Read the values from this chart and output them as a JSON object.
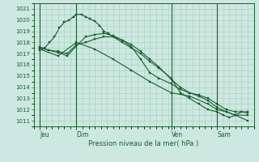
{
  "background_color": "#cce8e0",
  "grid_color": "#a8ccbf",
  "line_color": "#1a5e30",
  "xlabel": "Pression niveau de la mer( hPa )",
  "ylim": [
    1010.5,
    1021.5
  ],
  "yticks": [
    1011,
    1012,
    1013,
    1014,
    1015,
    1016,
    1017,
    1018,
    1019,
    1020,
    1021
  ],
  "xlim": [
    0,
    36
  ],
  "day_labels": [
    "Jeu",
    "Dim",
    "Ven",
    "Sam"
  ],
  "day_positions": [
    1.0,
    7.0,
    22.5,
    30.0
  ],
  "vline_positions": [
    1.0,
    7.0,
    22.5,
    30.0
  ],
  "series1_x": [
    1.0,
    1.8,
    2.6,
    3.4,
    4.2,
    5.0,
    5.8,
    6.5,
    7.0,
    7.8,
    8.5,
    9.2,
    10.0,
    10.8,
    11.5,
    12.2,
    13.0,
    14.5,
    16.0,
    17.5,
    19.0,
    20.5,
    22.5,
    24.0,
    25.5,
    27.0,
    28.5,
    30.0,
    31.0,
    32.0,
    33.0,
    34.0,
    35.0
  ],
  "series1_y": [
    1017.3,
    1017.5,
    1018.0,
    1018.5,
    1019.3,
    1019.8,
    1020.0,
    1020.3,
    1020.5,
    1020.5,
    1020.3,
    1020.1,
    1019.9,
    1019.5,
    1019.0,
    1018.8,
    1018.5,
    1018.0,
    1017.5,
    1017.0,
    1016.3,
    1015.7,
    1014.8,
    1013.5,
    1013.0,
    1012.5,
    1012.0,
    1011.8,
    1011.5,
    1011.3,
    1011.5,
    1011.8,
    1011.7
  ],
  "series2_x": [
    1.0,
    2.5,
    4.0,
    5.5,
    7.0,
    8.5,
    10.0,
    11.5,
    13.0,
    14.5,
    16.0,
    17.5,
    19.0,
    20.5,
    22.5,
    24.0,
    25.5,
    27.0,
    28.5,
    30.0,
    31.5,
    33.0,
    35.0
  ],
  "series2_y": [
    1017.5,
    1017.3,
    1017.2,
    1017.0,
    1017.8,
    1018.0,
    1018.3,
    1018.5,
    1018.5,
    1018.2,
    1017.8,
    1017.2,
    1016.5,
    1015.8,
    1014.7,
    1014.0,
    1013.5,
    1013.3,
    1013.0,
    1012.5,
    1012.0,
    1011.8,
    1011.8
  ],
  "series3_x": [
    1.0,
    2.5,
    4.0,
    5.5,
    7.0,
    8.5,
    10.0,
    11.5,
    13.0,
    14.5,
    16.0,
    17.5,
    19.0,
    20.5,
    22.5,
    24.0,
    25.5,
    27.0,
    28.5,
    30.0,
    31.5,
    33.0,
    35.0
  ],
  "series3_y": [
    1017.6,
    1017.3,
    1017.1,
    1016.8,
    1017.7,
    1018.5,
    1018.7,
    1018.8,
    1018.6,
    1018.2,
    1017.6,
    1016.5,
    1015.3,
    1014.8,
    1014.3,
    1013.8,
    1013.5,
    1013.2,
    1012.8,
    1012.2,
    1011.8,
    1011.5,
    1011.5
  ],
  "series4_x": [
    1.0,
    4.0,
    7.0,
    10.0,
    13.0,
    16.0,
    19.0,
    22.5,
    25.5,
    28.5,
    30.0,
    31.5,
    33.0,
    35.0
  ],
  "series4_y": [
    1017.4,
    1016.8,
    1018.0,
    1017.4,
    1016.5,
    1015.5,
    1014.5,
    1013.5,
    1013.2,
    1012.5,
    1012.0,
    1011.8,
    1011.5,
    1011.0
  ]
}
